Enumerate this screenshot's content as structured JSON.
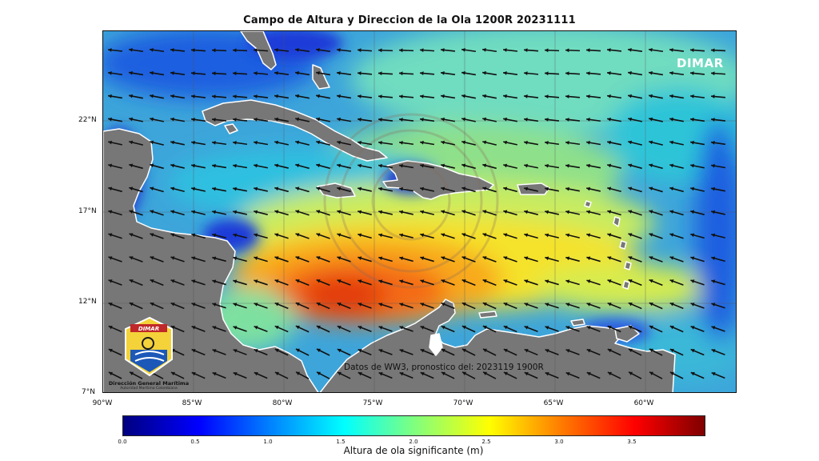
{
  "title": "Campo de Altura y Direccion de la Ola 1200R 20231111",
  "brand": "DIMAR",
  "source_note": "Datos de WW3, pronostico del: 2023119 1900R",
  "organization": {
    "name": "Dirección General Marítima",
    "subtitle": "Autoridad Marítima Colombiana",
    "logo_text": "DIMAR"
  },
  "axes": {
    "lat_labels": [
      "22°N",
      "17°N",
      "12°N",
      "7°N"
    ],
    "lon_labels": [
      "90°W",
      "85°W",
      "80°W",
      "75°W",
      "70°W",
      "65°W",
      "60°W"
    ],
    "lat_range": [
      7,
      27
    ],
    "lon_range": [
      -90,
      -55
    ],
    "grid": true
  },
  "colorbar": {
    "label": "Altura de ola significante (m)",
    "ticks": [
      "0.0",
      "0.5",
      "1.0",
      "1.5",
      "2.0",
      "2.5",
      "3.0",
      "3.5"
    ],
    "range": [
      0,
      4
    ],
    "colors": [
      "#00007f",
      "#0000ff",
      "#007fff",
      "#00ffff",
      "#7fff7f",
      "#ffff00",
      "#ff7f00",
      "#ff0000",
      "#7f0000"
    ]
  },
  "field": {
    "max_wave_height_m": 3.8,
    "max_location": {
      "lon": -76.5,
      "lat": 12.5
    },
    "dominant_direction": "toward west / west-southwest"
  },
  "colors": {
    "land": "#777777",
    "ocean_low": "#1f2fd0",
    "grid": "#555555"
  }
}
